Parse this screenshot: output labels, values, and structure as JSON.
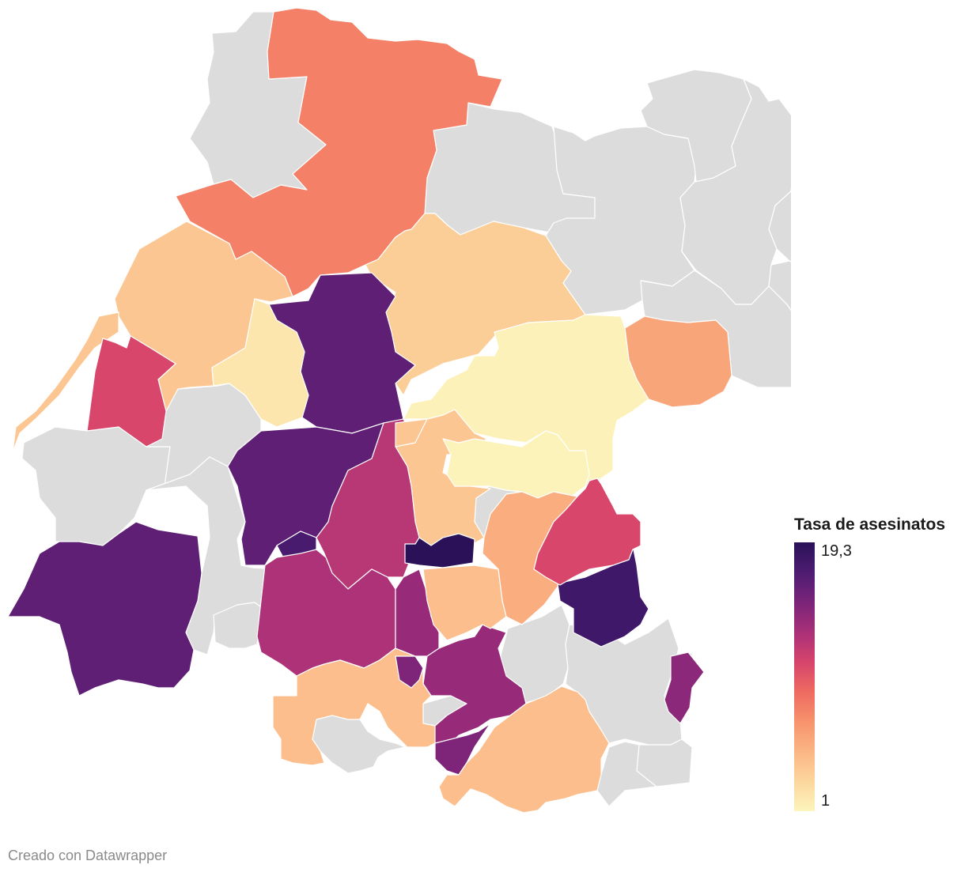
{
  "map": {
    "no_data_color": "#dcdcdc",
    "regions": [
      {
        "id": "r01",
        "value": null
      },
      {
        "id": "r02",
        "value": null
      },
      {
        "id": "r03",
        "value": 8
      },
      {
        "id": "r04",
        "value": null
      },
      {
        "id": "r05",
        "value": null
      },
      {
        "id": "r06",
        "value": null
      },
      {
        "id": "r07",
        "value": null
      },
      {
        "id": "r08",
        "value": null
      },
      {
        "id": "r09",
        "value": null
      },
      {
        "id": "r10",
        "value": null
      },
      {
        "id": "r11",
        "value": 4
      },
      {
        "id": "r12",
        "value": 3.5
      },
      {
        "id": "r13",
        "value": 4
      },
      {
        "id": "r14",
        "value": 11
      },
      {
        "id": "r15",
        "value": 16.5
      },
      {
        "id": "r16",
        "value": 2
      },
      {
        "id": "r17",
        "value": 6
      },
      {
        "id": "r18",
        "value": 4
      },
      {
        "id": "r19",
        "value": 16.5
      },
      {
        "id": "r20",
        "value": 12.5
      },
      {
        "id": "r21",
        "value": 4
      },
      {
        "id": "r22",
        "value": 1.2
      },
      {
        "id": "r23",
        "value": 11
      },
      {
        "id": "r24",
        "value": 1.1
      },
      {
        "id": "r25",
        "value": 17.5
      },
      {
        "id": "r26",
        "value": 19.3
      },
      {
        "id": "r27",
        "value": 5.5
      },
      {
        "id": "r28",
        "value": 18
      },
      {
        "id": "r29",
        "value": 16.5
      },
      {
        "id": "r30",
        "value": null
      },
      {
        "id": "r31",
        "value": null
      },
      {
        "id": "r32",
        "value": null
      },
      {
        "id": "r33",
        "value": 13
      },
      {
        "id": "r34",
        "value": 14
      },
      {
        "id": "r35",
        "value": 14
      },
      {
        "id": "r36",
        "value": 15
      },
      {
        "id": "r37",
        "value": 14.5
      },
      {
        "id": "r38",
        "value": 4.5
      },
      {
        "id": "r39",
        "value": 4.5
      },
      {
        "id": "r40",
        "value": null
      },
      {
        "id": "r41",
        "value": null
      },
      {
        "id": "r42",
        "value": null
      },
      {
        "id": "r43",
        "value": null
      },
      {
        "id": "r44",
        "value": null
      },
      {
        "id": "r45",
        "value": null
      },
      {
        "id": "r46",
        "value": 15
      },
      {
        "id": "r47",
        "value": null
      },
      {
        "id": "r48",
        "value": null
      },
      {
        "id": "r49",
        "value": null
      },
      {
        "id": "r50",
        "value": 4.5
      }
    ]
  },
  "legend": {
    "title": "Tasa de asesinatos",
    "max_label": "19,3",
    "min_label": "1",
    "min": 1,
    "max": 19.3,
    "colors": [
      "#2a1158",
      "#4d1c72",
      "#7a2479",
      "#a93079",
      "#d6446c",
      "#ee6a61",
      "#f7926c",
      "#fbb585",
      "#fcd69d",
      "#fcf5bc"
    ]
  },
  "credit": "Creado con Datawrapper"
}
